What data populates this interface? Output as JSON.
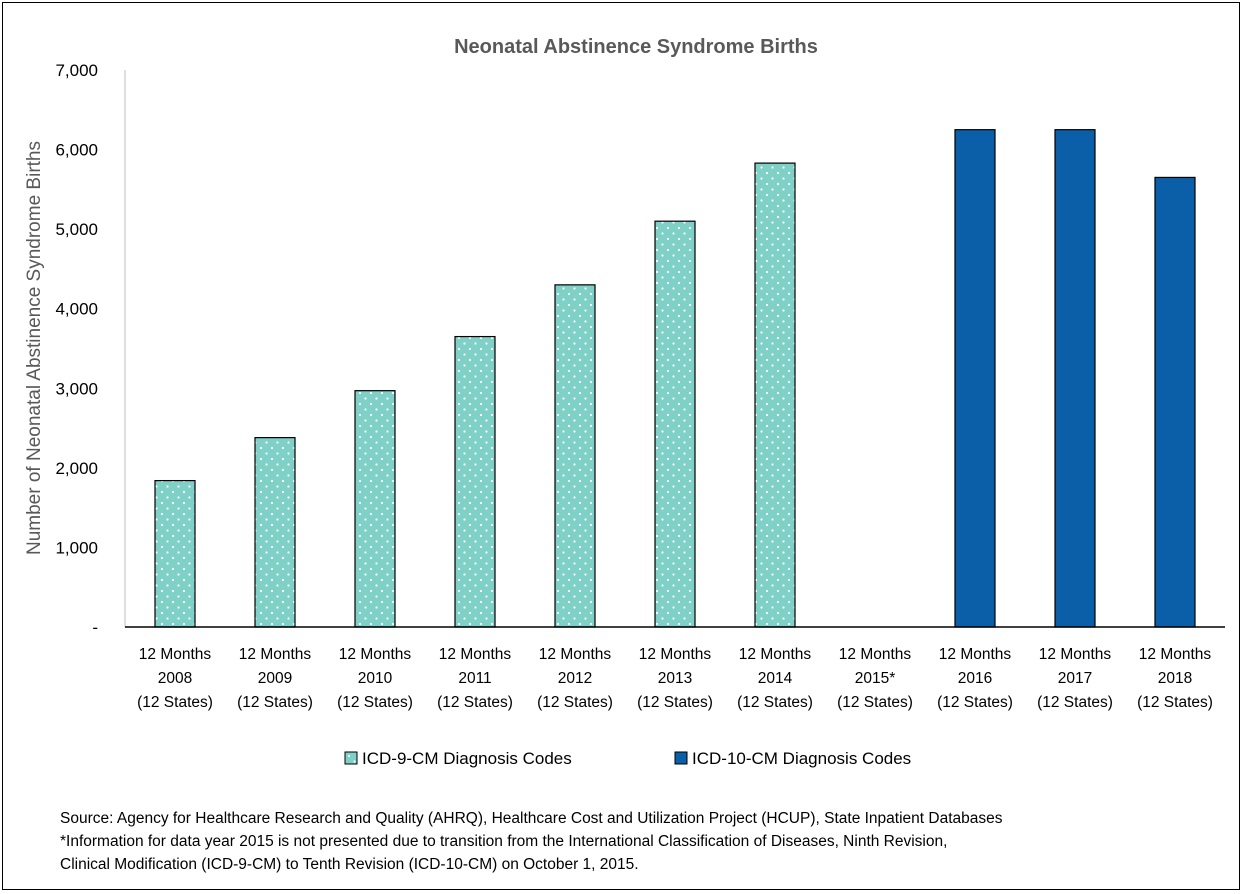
{
  "chart_data": {
    "type": "bar",
    "title": "Neonatal Abstinence Syndrome Births",
    "ylabel": "Number of Neonatal Abstinence Syndrome Births",
    "xlabel": "",
    "ylim": [
      0,
      7000
    ],
    "yticks": [
      {
        "value": 0,
        "label": "-"
      },
      {
        "value": 1000,
        "label": "1,000"
      },
      {
        "value": 2000,
        "label": "2,000"
      },
      {
        "value": 3000,
        "label": "3,000"
      },
      {
        "value": 4000,
        "label": "4,000"
      },
      {
        "value": 5000,
        "label": "5,000"
      },
      {
        "value": 6000,
        "label": "6,000"
      },
      {
        "value": 7000,
        "label": "7,000"
      }
    ],
    "categories": [
      [
        "12 Months",
        "2008",
        "(12 States)"
      ],
      [
        "12 Months",
        "2009",
        "(12 States)"
      ],
      [
        "12 Months",
        "2010",
        "(12 States)"
      ],
      [
        "12 Months",
        "2011",
        "(12 States)"
      ],
      [
        "12 Months",
        "2012",
        "(12 States)"
      ],
      [
        "12 Months",
        "2013",
        "(12 States)"
      ],
      [
        "12 Months",
        "2014",
        "(12 States)"
      ],
      [
        "12 Months",
        "2015*",
        "(12 States)"
      ],
      [
        "12 Months",
        "2016",
        "(12 States)"
      ],
      [
        "12 Months",
        "2017",
        "(12 States)"
      ],
      [
        "12 Months",
        "2018",
        "(12 States)"
      ]
    ],
    "series": [
      {
        "name": "ICD-9-CM Diagnosis Codes",
        "color": "#7fd1c8",
        "pattern": "dotted",
        "values": [
          1840,
          2380,
          2970,
          3650,
          4300,
          5100,
          5830,
          null,
          null,
          null,
          null
        ]
      },
      {
        "name": "ICD-10-CM Diagnosis Codes",
        "color": "#0a5fa8",
        "pattern": "solid",
        "values": [
          null,
          null,
          null,
          null,
          null,
          null,
          null,
          null,
          6250,
          6250,
          5650
        ]
      }
    ],
    "grid": false,
    "legend_position": "bottom"
  },
  "notes": [
    "Source: Agency for Healthcare Research and Quality (AHRQ), Healthcare Cost and Utilization Project (HCUP), State Inpatient Databases",
    "*Information for data year 2015 is not presented due to transition from the International Classification of Diseases, Ninth Revision,",
    "Clinical Modification (ICD-9-CM) to Tenth Revision (ICD-10-CM) on October 1, 2015."
  ]
}
